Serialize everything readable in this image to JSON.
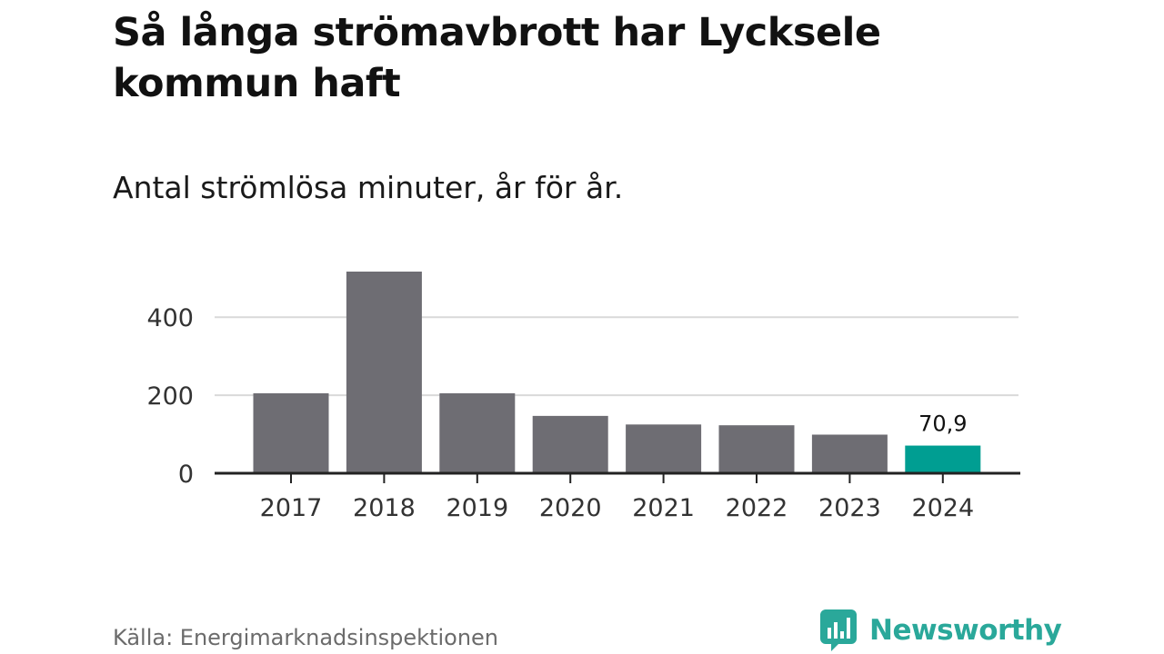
{
  "title": "Så långa strömavbrott har Lycksele kommun haft",
  "subtitle": "Antal strömlösa minuter, år för år.",
  "source": "Källa: Energimarknadsinspektionen",
  "brand": {
    "name": "Newsworthy",
    "icon": "newsworthy-logo-icon",
    "color": "#2aa89a"
  },
  "colors": {
    "bar": "#6e6d73",
    "highlight": "#009e92",
    "grid": "#d9d9d9",
    "axis": "#222222"
  },
  "chart_data": {
    "type": "bar",
    "title": "Så långa strömavbrott har Lycksele kommun haft",
    "subtitle": "Antal strömlösa minuter, år för år.",
    "xlabel": "",
    "ylabel": "",
    "categories": [
      "2017",
      "2018",
      "2019",
      "2020",
      "2021",
      "2022",
      "2023",
      "2024"
    ],
    "values": [
      205,
      517,
      205,
      147,
      125,
      123,
      99,
      70.9
    ],
    "highlight_index": 7,
    "highlight_label": "70,9",
    "yticks": [
      0,
      200,
      400
    ],
    "ylim": [
      0,
      517
    ],
    "grid": true,
    "legend": "none"
  }
}
